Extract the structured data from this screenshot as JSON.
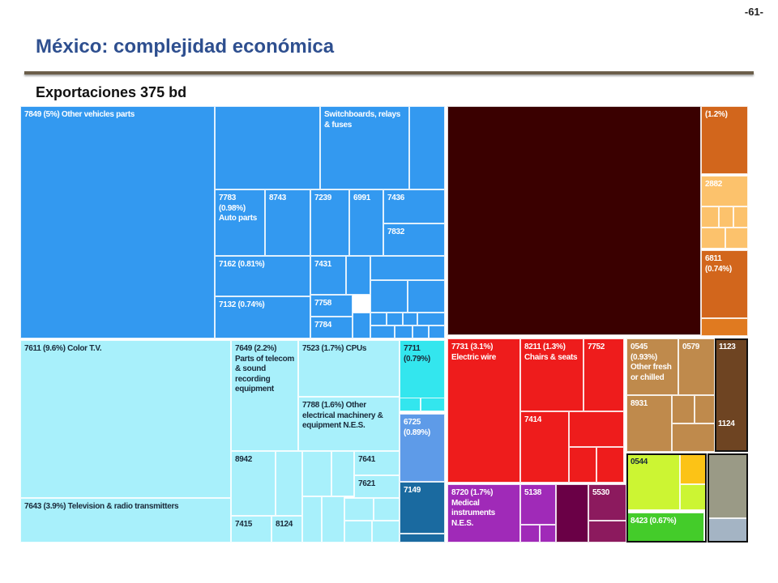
{
  "page_number": "-61-",
  "title": "México: complejidad económica",
  "subtitle": "Exportaciones 375 bd",
  "chart_data": {
    "type": "treemap",
    "title": "México: complejidad económica",
    "subtitle": "Exportaciones 375 bd",
    "tiles": [
      {
        "label": "7849 (5%) Other vehicles parts",
        "value_pct": 5.0
      },
      {
        "label": "Switchboards, relays & fuses"
      },
      {
        "label": "7783 (0.98%) Auto parts",
        "value_pct": 0.98
      },
      {
        "label": "8743"
      },
      {
        "label": "7239"
      },
      {
        "label": "6991"
      },
      {
        "label": "7436"
      },
      {
        "label": "7832"
      },
      {
        "label": "7162 (0.81%)",
        "value_pct": 0.81
      },
      {
        "label": "7132 (0.74%)",
        "value_pct": 0.74
      },
      {
        "label": "7431"
      },
      {
        "label": "7758"
      },
      {
        "label": "7784"
      },
      {
        "label": "(1.2%)",
        "value_pct": 1.2
      },
      {
        "label": "2882"
      },
      {
        "label": "6811 (0.74%)",
        "value_pct": 0.74
      },
      {
        "label": "7611 (9.6%) Color T.V.",
        "value_pct": 9.6
      },
      {
        "label": "7649 (2.2%) Parts of telecom & sound recording equipment",
        "value_pct": 2.2
      },
      {
        "label": "7523 (1.7%) CPUs",
        "value_pct": 1.7
      },
      {
        "label": "7711 (0.79%)",
        "value_pct": 0.79
      },
      {
        "label": "7788 (1.6%) Other electrical machinery & equipment N.E.S.",
        "value_pct": 1.6
      },
      {
        "label": "6725 (0.89%)",
        "value_pct": 0.89
      },
      {
        "label": "8942"
      },
      {
        "label": "7641"
      },
      {
        "label": "7621"
      },
      {
        "label": "7643 (3.9%) Television & radio transmitters",
        "value_pct": 3.9
      },
      {
        "label": "7415"
      },
      {
        "label": "8124"
      },
      {
        "label": "7149"
      },
      {
        "label": "7731 (3.1%) Electric wire",
        "value_pct": 3.1
      },
      {
        "label": "8211 (1.3%) Chairs & seats",
        "value_pct": 1.3
      },
      {
        "label": "7752"
      },
      {
        "label": "7414"
      },
      {
        "label": "8720 (1.7%) Medical instruments N.E.S.",
        "value_pct": 1.7
      },
      {
        "label": "5138"
      },
      {
        "label": "5530"
      },
      {
        "label": "0545 (0.93%) Other fresh or chilled",
        "value_pct": 0.93
      },
      {
        "label": "0579"
      },
      {
        "label": "1123"
      },
      {
        "label": "8931"
      },
      {
        "label": "1124"
      },
      {
        "label": "0544"
      },
      {
        "label": "8423 (0.67%)",
        "value_pct": 0.67
      }
    ]
  },
  "colors": {
    "title": "#2e4f8f",
    "rule": "#6b5e4a",
    "machinery_blue": "#3399f0",
    "electronics_cyan": "#a8f0fb",
    "bright_cyan": "#33e6ee",
    "steel_blue": "#5e9be8",
    "navy_teal": "#1a6aa0",
    "vehicles_dark": "#3a0000",
    "minerals_orange": "#d2661c",
    "light_orange": "#fcc26c",
    "orange_2": "#e07a20",
    "electrical_red": "#ee1c1c",
    "dark_red": "#c01010",
    "purple": "#a02ab8",
    "deep_magenta": "#6a0046",
    "magenta": "#8c1a5e",
    "food_tan": "#bf8a4c",
    "dark_brown": "#6e4422",
    "lime": "#ccf533",
    "gold": "#fcc316",
    "green": "#44cc2a",
    "gray_olive": "#9a9a86",
    "gray_blue": "#a4b4c4",
    "black_border": "#111111"
  }
}
